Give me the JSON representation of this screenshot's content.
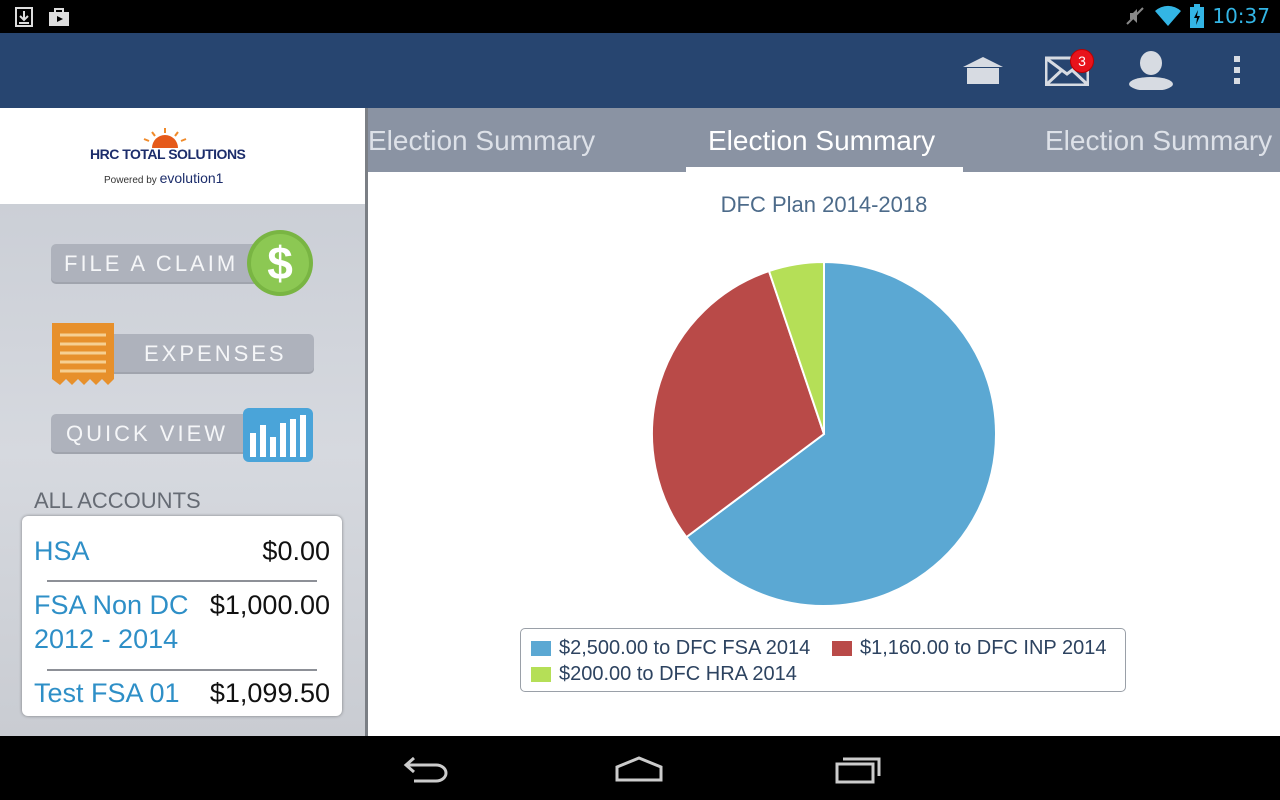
{
  "status_bar": {
    "time": "10:37",
    "icons": [
      "download-icon",
      "store-icon",
      "mute-icon",
      "wifi-icon",
      "battery-charging-icon"
    ]
  },
  "action_bar": {
    "icons": [
      "home-icon",
      "mail-icon",
      "profile-icon",
      "overflow-menu-icon"
    ],
    "mail_badge": "3"
  },
  "sidebar": {
    "logo": {
      "title": "HRC TOTAL SOLUTIONS",
      "powered_by": "Powered by",
      "brand": "evolution1"
    },
    "menu": [
      {
        "label": "FILE A CLAIM",
        "icon": "dollar-icon"
      },
      {
        "label": "EXPENSES",
        "icon": "receipt-icon"
      },
      {
        "label": "QUICK VIEW",
        "icon": "bar-chart-icon"
      }
    ],
    "accounts_heading": "ALL ACCOUNTS",
    "accounts": [
      {
        "name": "HSA",
        "amount": "$0.00"
      },
      {
        "name": "FSA Non DC",
        "name2": "2012 - 2014",
        "amount": "$1,000.00"
      },
      {
        "name": "Test FSA 01",
        "amount": "$1,099.50"
      }
    ]
  },
  "tabs": [
    {
      "label": "Election Summary",
      "active": false
    },
    {
      "label": "Election Summary",
      "active": true
    },
    {
      "label": "Election Summary",
      "active": false
    }
  ],
  "chart_data": {
    "type": "pie",
    "title": "DFC Plan 2014-2018",
    "series": [
      {
        "name": "$2,500.00 to DFC FSA 2014",
        "value": 2500,
        "color": "#5ba8d3"
      },
      {
        "name": "$1,160.00 to DFC INP 2014",
        "value": 1160,
        "color": "#b94a48"
      },
      {
        "name": "$200.00 to DFC HRA 2014",
        "value": 200,
        "color": "#b5df57"
      }
    ],
    "legend_position": "bottom"
  },
  "nav_bar": {
    "icons": [
      "back-icon",
      "home-nav-icon",
      "recent-apps-icon"
    ]
  }
}
